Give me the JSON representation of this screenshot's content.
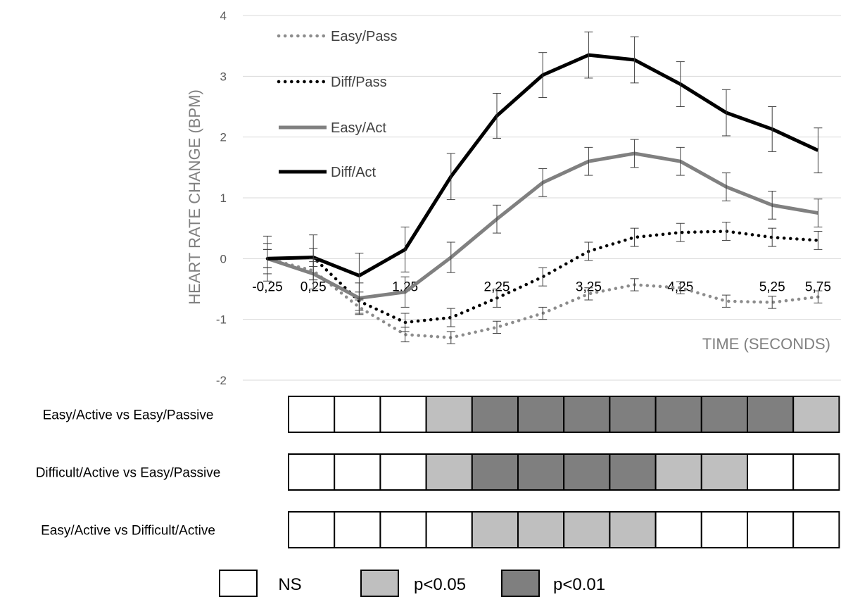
{
  "chart_data": {
    "type": "line",
    "title": "",
    "xlabel": "TIME (SECONDS)",
    "ylabel": "HEART RATE CHANGE (BPM)",
    "ylim": [
      -2,
      4
    ],
    "yticks": [
      "-2",
      "-1",
      "0",
      "1",
      "2",
      "3",
      "4"
    ],
    "x_tick_labels": [
      "-0,25",
      "0,25",
      "1,25",
      "2,25",
      "3,25",
      "4,25",
      "5,25",
      "5,75"
    ],
    "x": [
      -0.25,
      0.25,
      0.75,
      1.25,
      1.75,
      2.25,
      2.75,
      3.25,
      3.75,
      4.25,
      4.75,
      5.25,
      5.75
    ],
    "grid": true,
    "legend_position": "top-left",
    "series": [
      {
        "name": "Easy/Pass",
        "style": "dotted",
        "color": "#8c8c8c",
        "values": [
          0,
          -0.2,
          -0.8,
          -1.25,
          -1.3,
          -1.13,
          -0.9,
          -0.58,
          -0.43,
          -0.48,
          -0.7,
          -0.72,
          -0.63
        ],
        "errors": [
          0.15,
          0.15,
          0.12,
          0.12,
          0.1,
          0.1,
          0.1,
          0.1,
          0.1,
          0.1,
          0.1,
          0.1,
          0.1
        ]
      },
      {
        "name": "Diff/Pass",
        "style": "dotted",
        "color": "#000000",
        "values": [
          0,
          0.02,
          -0.7,
          -1.05,
          -0.97,
          -0.65,
          -0.3,
          0.12,
          0.35,
          0.43,
          0.45,
          0.35,
          0.3
        ],
        "errors": [
          0.15,
          0.15,
          0.15,
          0.15,
          0.15,
          0.15,
          0.15,
          0.15,
          0.15,
          0.15,
          0.15,
          0.15,
          0.15
        ]
      },
      {
        "name": "Easy/Act",
        "style": "solid",
        "color": "#808080",
        "values": [
          0,
          -0.25,
          -0.65,
          -0.55,
          0.02,
          0.65,
          1.25,
          1.6,
          1.73,
          1.6,
          1.18,
          0.88,
          0.75
        ],
        "errors": [
          0.25,
          0.25,
          0.25,
          0.25,
          0.25,
          0.23,
          0.23,
          0.23,
          0.23,
          0.23,
          0.23,
          0.23,
          0.23
        ]
      },
      {
        "name": "Diff/Act",
        "style": "solid",
        "color": "#000000",
        "values": [
          0,
          0.02,
          -0.28,
          0.15,
          1.35,
          2.35,
          3.02,
          3.35,
          3.27,
          2.87,
          2.4,
          2.13,
          1.78
        ],
        "errors": [
          0.37,
          0.37,
          0.37,
          0.37,
          0.38,
          0.37,
          0.37,
          0.38,
          0.38,
          0.37,
          0.38,
          0.37,
          0.37
        ]
      }
    ]
  },
  "significance": {
    "rows": [
      {
        "label": "Easy/Active vs Easy/Passive",
        "cells": [
          "ns",
          "ns",
          "ns",
          "p05",
          "p01",
          "p01",
          "p01",
          "p01",
          "p01",
          "p01",
          "p01",
          "p05"
        ]
      },
      {
        "label": "Difficult/Active vs Easy/Passive",
        "cells": [
          "ns",
          "ns",
          "ns",
          "p05",
          "p01",
          "p01",
          "p01",
          "p01",
          "p05",
          "p05",
          "ns",
          "ns"
        ]
      },
      {
        "label": "Easy/Active vs Difficult/Active",
        "cells": [
          "ns",
          "ns",
          "ns",
          "ns",
          "p05",
          "p05",
          "p05",
          "p05",
          "ns",
          "ns",
          "ns",
          "ns"
        ]
      }
    ],
    "colors": {
      "ns": "#ffffff",
      "p05": "#bfbfbf",
      "p01": "#7f7f7f"
    },
    "legend": [
      {
        "key": "ns",
        "label": "NS"
      },
      {
        "key": "p05",
        "label": "p<0.05"
      },
      {
        "key": "p01",
        "label": "p<0.01"
      }
    ]
  }
}
